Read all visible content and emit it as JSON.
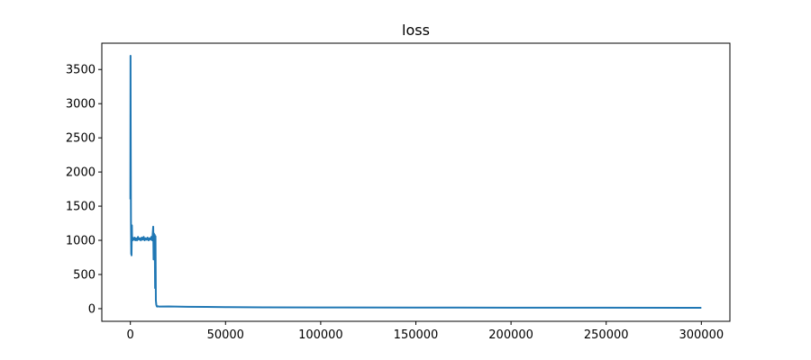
{
  "chart_data": {
    "type": "line",
    "title": "loss",
    "xlabel": "",
    "ylabel": "",
    "xlim": [
      -15000,
      315000
    ],
    "ylim": [
      -185,
      3885
    ],
    "grid": false,
    "legend": "none",
    "x_ticks": [
      0,
      50000,
      100000,
      150000,
      200000,
      250000,
      300000
    ],
    "x_tick_labels": [
      "0",
      "50000",
      "100000",
      "150000",
      "200000",
      "250000",
      "300000"
    ],
    "y_ticks": [
      0,
      500,
      1000,
      1500,
      2000,
      2500,
      3000,
      3500
    ],
    "y_tick_labels": [
      "0",
      "500",
      "1000",
      "1500",
      "2000",
      "2500",
      "3000",
      "3500"
    ],
    "series": [
      {
        "name": "loss",
        "color": "#1f77b4",
        "x": [
          0,
          80,
          150,
          220,
          300,
          380,
          450,
          520,
          600,
          700,
          800,
          900,
          1000,
          1200,
          1500,
          1800,
          2200,
          2600,
          3000,
          3500,
          4000,
          4500,
          5000,
          5500,
          6000,
          6500,
          7000,
          7500,
          8000,
          8500,
          9000,
          9500,
          10000,
          10500,
          11000,
          11500,
          12000,
          12200,
          12400,
          12600,
          12800,
          13000,
          13200,
          13400,
          13600,
          13800,
          14000,
          14500,
          15000,
          20000,
          30000,
          40000,
          50000,
          70000,
          100000,
          150000,
          200000,
          250000,
          300000
        ],
        "y": [
          1600,
          3700,
          2800,
          2100,
          1300,
          1050,
          800,
          1000,
          780,
          1010,
          1220,
          1000,
          1050,
          1000,
          1030,
          1010,
          1040,
          1000,
          1030,
          1000,
          1050,
          1010,
          1030,
          1000,
          1040,
          1010,
          1050,
          1000,
          1030,
          1010,
          1040,
          1000,
          1030,
          1010,
          1050,
          1000,
          1200,
          720,
          1100,
          900,
          1080,
          300,
          1060,
          120,
          60,
          40,
          30,
          35,
          30,
          32,
          28,
          25,
          22,
          20,
          18,
          16,
          15,
          14,
          13
        ]
      }
    ]
  }
}
